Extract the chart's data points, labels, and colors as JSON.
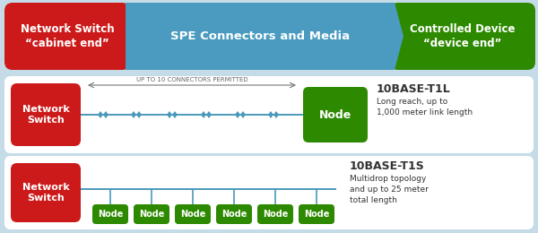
{
  "bg_color": "#c5dce8",
  "white_bg": "#ffffff",
  "red_color": "#cc1a1a",
  "green_color": "#2d8a00",
  "blue_arrow_color": "#4a9bbf",
  "line_color": "#4a99bb",
  "text_white": "#ffffff",
  "text_dark": "#333333",
  "header_left": "Network Switch\n“cabinet end”",
  "header_center": "SPE Connectors and Media",
  "header_right": "Controlled Device\n“device end”",
  "switch_label": "Network\nSwitch",
  "node_label": "Node",
  "t1l_title": "10BASE-T1L",
  "t1l_desc": "Long reach, up to\n1,000 meter link length",
  "t1s_title": "10BASE-T1S",
  "t1s_desc": "Multidrop topology\nand up to 25 meter\ntotal length",
  "connector_text": "UP TO 10 CONNECTORS PERMITTED"
}
